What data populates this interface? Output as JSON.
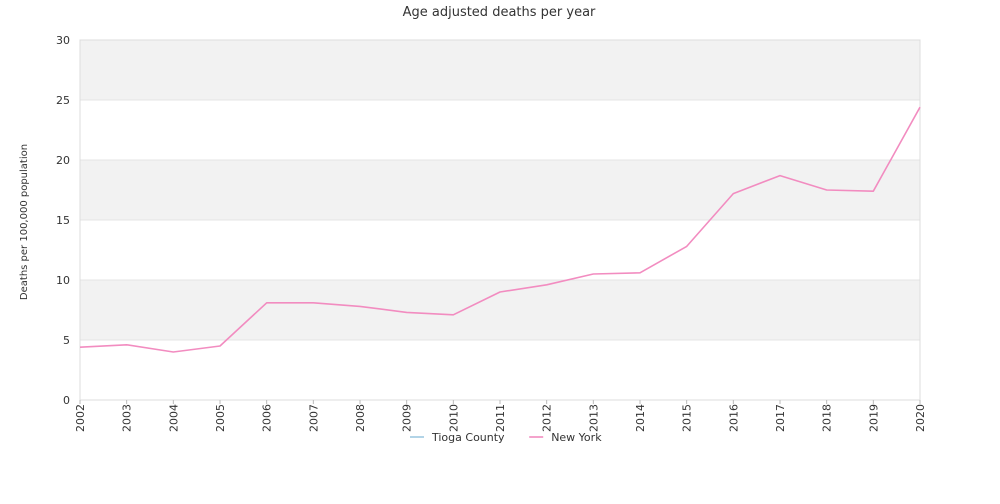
{
  "chart_data": {
    "type": "line",
    "title": "Age adjusted deaths per year",
    "xlabel": "",
    "ylabel": "Deaths per 100,000 population",
    "x": [
      "2002",
      "2003",
      "2004",
      "2005",
      "2006",
      "2007",
      "2008",
      "2009",
      "2010",
      "2011",
      "2012",
      "2013",
      "2014",
      "2015",
      "2016",
      "2017",
      "2018",
      "2019",
      "2020"
    ],
    "ylim": [
      0,
      30
    ],
    "yticks": [
      0,
      5,
      10,
      15,
      20,
      25,
      30
    ],
    "series": [
      {
        "name": "Tioga County",
        "color": "#9ecae1",
        "values": [
          null,
          null,
          null,
          null,
          null,
          null,
          null,
          null,
          null,
          null,
          null,
          null,
          null,
          null,
          null,
          null,
          null,
          null,
          null
        ]
      },
      {
        "name": "New York",
        "color": "#f28cc0",
        "values": [
          4.4,
          4.6,
          4.0,
          4.5,
          8.1,
          8.1,
          7.8,
          7.3,
          7.1,
          9.0,
          9.6,
          10.5,
          10.6,
          12.8,
          17.2,
          18.7,
          17.5,
          17.4,
          24.4
        ]
      }
    ],
    "grid": "horizontal bands",
    "band_color": "#f2f2f2",
    "legend_position": "bottom-center"
  }
}
